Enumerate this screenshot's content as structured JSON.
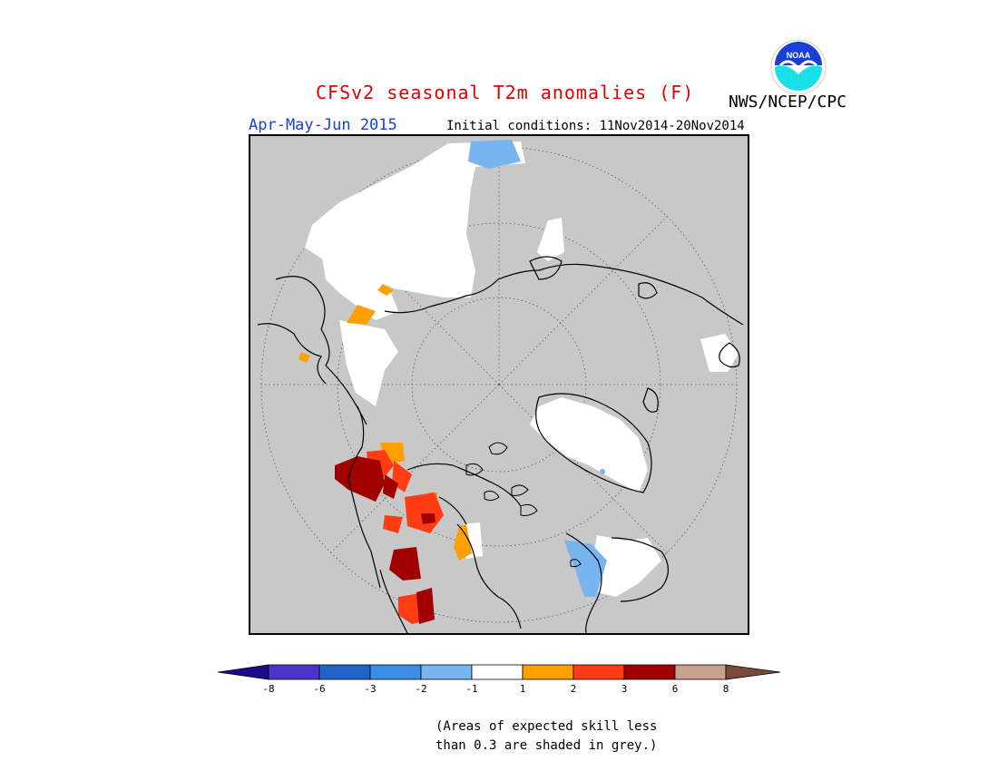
{
  "header": {
    "title": "CFSv2 seasonal T2m anomalies (F)",
    "agency": "NWS/NCEP/CPC",
    "logo_text": "NOAA",
    "season": "Apr-May-Jun 2015",
    "initial_conditions": "Initial conditions: 11Nov2014-20Nov2014"
  },
  "colorbar": {
    "colors": [
      "#1a0a8c",
      "#4a35c8",
      "#1e64c8",
      "#3a8ee6",
      "#78b4f0",
      "#ffffff",
      "#ffa000",
      "#ff3c14",
      "#a00000",
      "#c8a08c",
      "#7a4a3a"
    ],
    "labels": [
      "-8",
      "-6",
      "-3",
      "-2",
      "-1",
      "1",
      "2",
      "3",
      "6",
      "8"
    ]
  },
  "map": {
    "projection": "north-polar-stereographic",
    "skill_mask_color": "#c8c8c8"
  },
  "footnote": {
    "line1": "(Areas of expected skill less",
    "line2": "than 0.3 are shaded in grey.)"
  }
}
